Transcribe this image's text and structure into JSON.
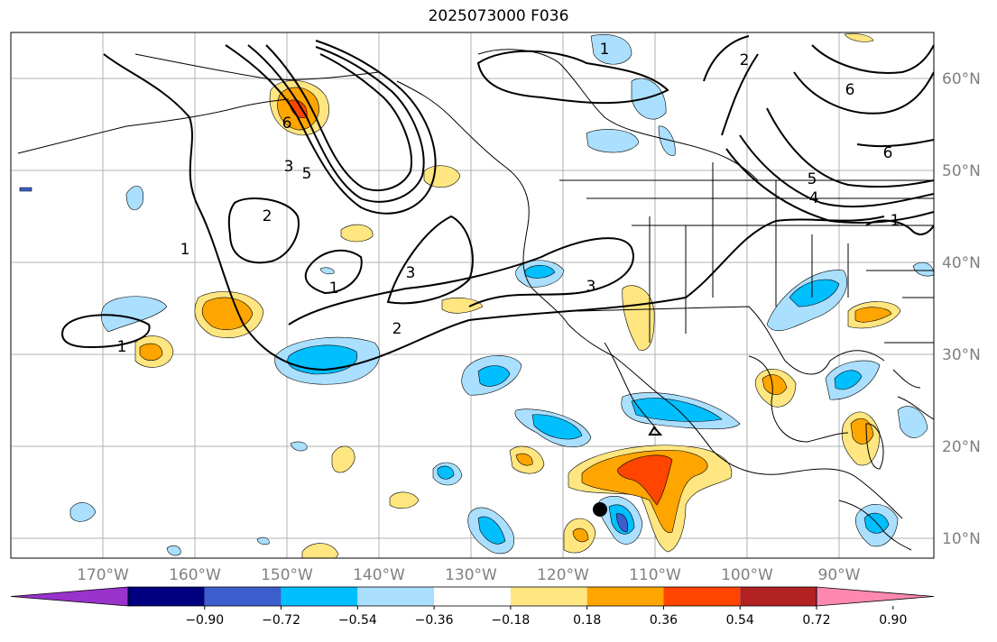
{
  "title": "2025073000 F036",
  "lat_labels": [
    "60°N",
    "50°N",
    "40°N",
    "30°N",
    "20°N",
    "10°N"
  ],
  "lon_labels": [
    "170°W",
    "160°W",
    "150°W",
    "140°W",
    "130°W",
    "120°W",
    "110°W",
    "100°W",
    "90°W"
  ],
  "colorbar": {
    "ticks": [
      "−0.90",
      "−0.72",
      "−0.54",
      "−0.36",
      "−0.18",
      "0.18",
      "0.36",
      "0.54",
      "0.72",
      "0.90"
    ],
    "colors": [
      "#9933cc",
      "#000080",
      "#3a5fcd",
      "#00bfff",
      "#aadfff",
      "#ffffff",
      "#ffe680",
      "#ffa500",
      "#ff4500",
      "#b22222",
      "#ff88b0"
    ]
  },
  "contour_labels": [
    "1",
    "2",
    "3",
    "1",
    "2",
    "3",
    "6",
    "5",
    "2",
    "6",
    "6",
    "5",
    "4",
    "1",
    "1",
    "3",
    "1"
  ]
}
